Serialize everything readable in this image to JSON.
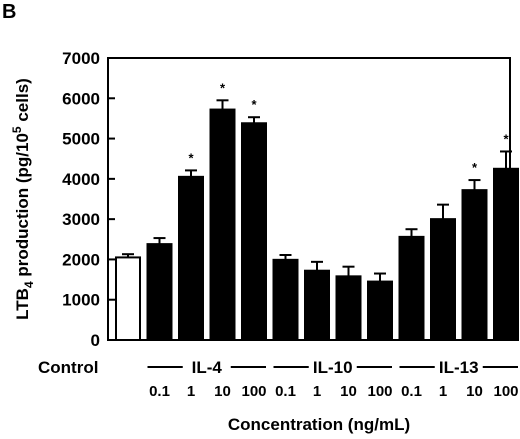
{
  "chart_data": {
    "type": "bar",
    "panel_label": "B",
    "ylabel_parts": [
      "LTB",
      "4",
      " production (pg/10",
      "5",
      " cells)"
    ],
    "xlabel": "Concentration (ng/mL)",
    "ylim": [
      0,
      7000
    ],
    "yticks": [
      "0",
      "1000",
      "2000",
      "3000",
      "4000",
      "5000",
      "6000",
      "7000"
    ],
    "grid": false,
    "legend": "none",
    "control": {
      "label": "Control",
      "value": 2050,
      "error": 80,
      "fill": "#ffffff"
    },
    "groups": [
      {
        "name": "IL-4",
        "concentrations": [
          "0.1",
          "1",
          "10",
          "100"
        ],
        "values": [
          2380,
          4050,
          5720,
          5380
        ],
        "errors": [
          150,
          160,
          230,
          150
        ],
        "significant": [
          "",
          "*",
          "*",
          "*"
        ]
      },
      {
        "name": "IL-10",
        "concentrations": [
          "0.1",
          "1",
          "10",
          "100"
        ],
        "values": [
          1990,
          1720,
          1580,
          1450
        ],
        "errors": [
          120,
          220,
          240,
          200
        ],
        "significant": [
          "",
          "",
          "",
          ""
        ]
      },
      {
        "name": "IL-13",
        "concentrations": [
          "0.1",
          "1",
          "10",
          "100"
        ],
        "values": [
          2560,
          3000,
          3720,
          4250
        ],
        "errors": [
          190,
          360,
          250,
          430
        ],
        "significant": [
          "",
          "",
          "*",
          "*"
        ]
      }
    ],
    "bar_color": "#000000",
    "sig_marker": "*"
  }
}
